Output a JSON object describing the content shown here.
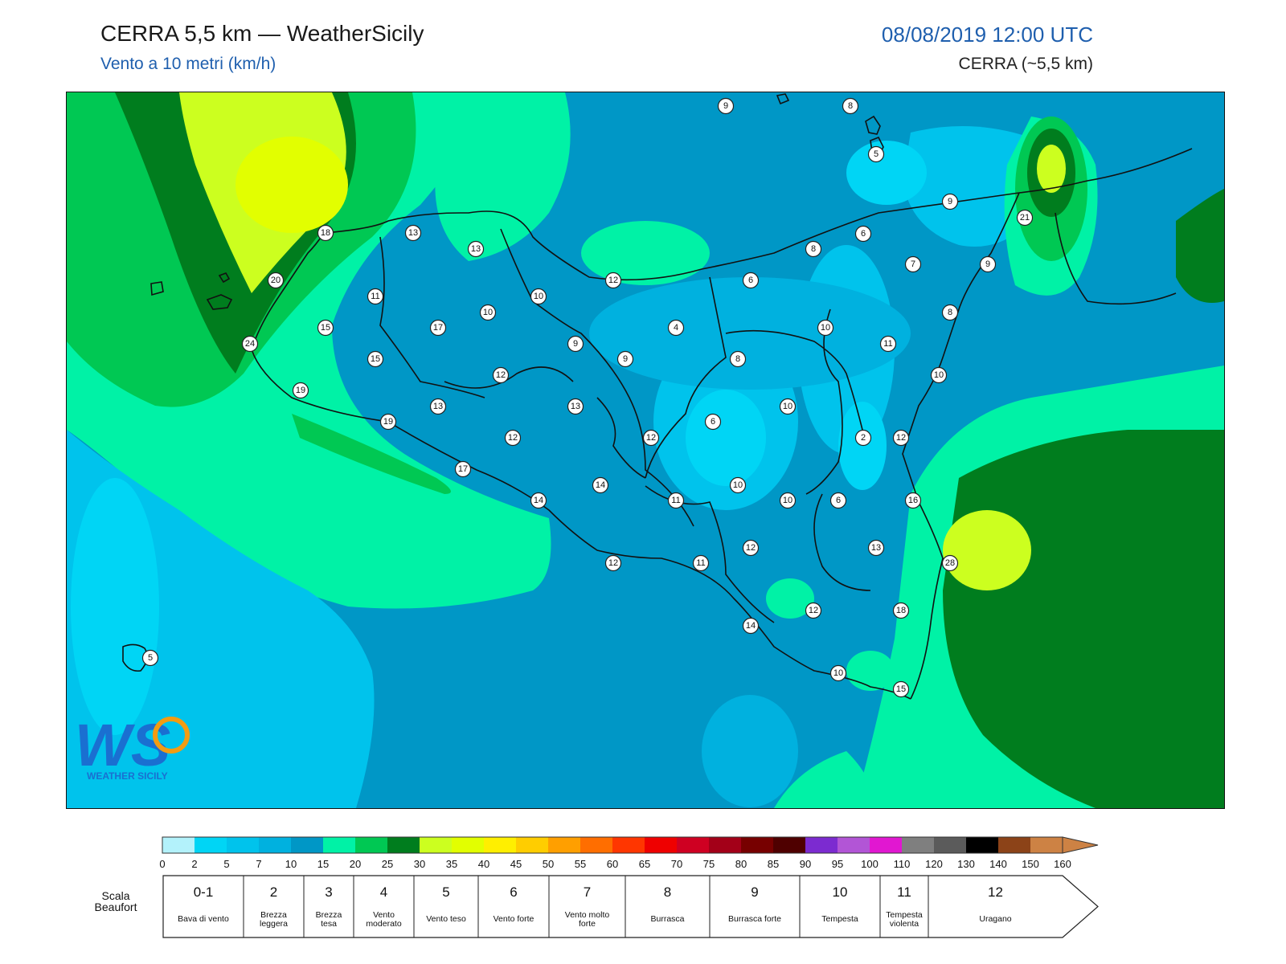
{
  "header": {
    "title": "CERRA 5,5 km — WeatherSicily",
    "subtitle": "Vento a 10 metri (km/h)",
    "datetime": "08/08/2019 12:00 UTC",
    "model_note": "CERRA (~5,5 km)"
  },
  "logo": {
    "text": "WS",
    "subtext": "WEATHER SICILY"
  },
  "stations": [
    {
      "value": "9"
    },
    {
      "value": "8"
    },
    {
      "value": "5"
    },
    {
      "value": "9"
    },
    {
      "value": "21"
    },
    {
      "value": "6"
    },
    {
      "value": "8"
    },
    {
      "value": "7"
    },
    {
      "value": "9"
    },
    {
      "value": "18"
    },
    {
      "value": "13"
    },
    {
      "value": "13"
    },
    {
      "value": "20"
    },
    {
      "value": "11"
    },
    {
      "value": "12"
    },
    {
      "value": "6"
    },
    {
      "value": "10"
    },
    {
      "value": "10"
    },
    {
      "value": "8"
    },
    {
      "value": "15"
    },
    {
      "value": "17"
    },
    {
      "value": "4"
    },
    {
      "value": "10"
    },
    {
      "value": "11"
    },
    {
      "value": "24"
    },
    {
      "value": "15"
    },
    {
      "value": "9"
    },
    {
      "value": "9"
    },
    {
      "value": "8"
    },
    {
      "value": "12"
    },
    {
      "value": "10"
    },
    {
      "value": "19"
    },
    {
      "value": "13"
    },
    {
      "value": "13"
    },
    {
      "value": "10"
    },
    {
      "value": "19"
    },
    {
      "value": "6"
    },
    {
      "value": "12"
    },
    {
      "value": "12"
    },
    {
      "value": "2"
    },
    {
      "value": "12"
    },
    {
      "value": "17"
    },
    {
      "value": "14"
    },
    {
      "value": "10"
    },
    {
      "value": "14"
    },
    {
      "value": "11"
    },
    {
      "value": "10"
    },
    {
      "value": "6"
    },
    {
      "value": "16"
    },
    {
      "value": "12"
    },
    {
      "value": "13"
    },
    {
      "value": "12"
    },
    {
      "value": "11"
    },
    {
      "value": "28"
    },
    {
      "value": "12"
    },
    {
      "value": "18"
    },
    {
      "value": "14"
    },
    {
      "value": "5"
    },
    {
      "value": "10"
    },
    {
      "value": "15"
    }
  ],
  "legend": {
    "ticks": [
      "0",
      "2",
      "5",
      "7",
      "10",
      "15",
      "20",
      "25",
      "30",
      "35",
      "40",
      "45",
      "50",
      "55",
      "60",
      "65",
      "70",
      "75",
      "80",
      "85",
      "90",
      "95",
      "100",
      "110",
      "120",
      "130",
      "140",
      "150",
      "160"
    ],
    "colors": [
      "#b3f2fb",
      "#00d5f5",
      "#00c3ec",
      "#00b1df",
      "#0097c6",
      "#00f2a6",
      "#00c853",
      "#007d1e",
      "#ccff1f",
      "#e2ff00",
      "#ffef00",
      "#ffcd00",
      "#ff9f00",
      "#ff6e00",
      "#ff3600",
      "#ef0000",
      "#cf0022",
      "#a30018",
      "#770000",
      "#4f0000",
      "#7c2bd0",
      "#b255d6",
      "#e117d1",
      "#7f7f7f",
      "#5b5b5b",
      "#000000",
      "#8c4318",
      "#cd8244"
    ]
  },
  "beaufort": {
    "label": "Scala Beaufort",
    "levels": [
      {
        "num": "0-1",
        "desc": "Bava di vento"
      },
      {
        "num": "2",
        "desc": "Brezza leggera"
      },
      {
        "num": "3",
        "desc": "Brezza tesa"
      },
      {
        "num": "4",
        "desc": "Vento moderato"
      },
      {
        "num": "5",
        "desc": "Vento teso"
      },
      {
        "num": "6",
        "desc": "Vento forte"
      },
      {
        "num": "7",
        "desc": "Vento molto forte"
      },
      {
        "num": "8",
        "desc": "Burrasca"
      },
      {
        "num": "9",
        "desc": "Burrasca forte"
      },
      {
        "num": "10",
        "desc": "Tempesta"
      },
      {
        "num": "11",
        "desc": "Tempesta violenta"
      },
      {
        "num": "12",
        "desc": "Uragano"
      }
    ]
  }
}
